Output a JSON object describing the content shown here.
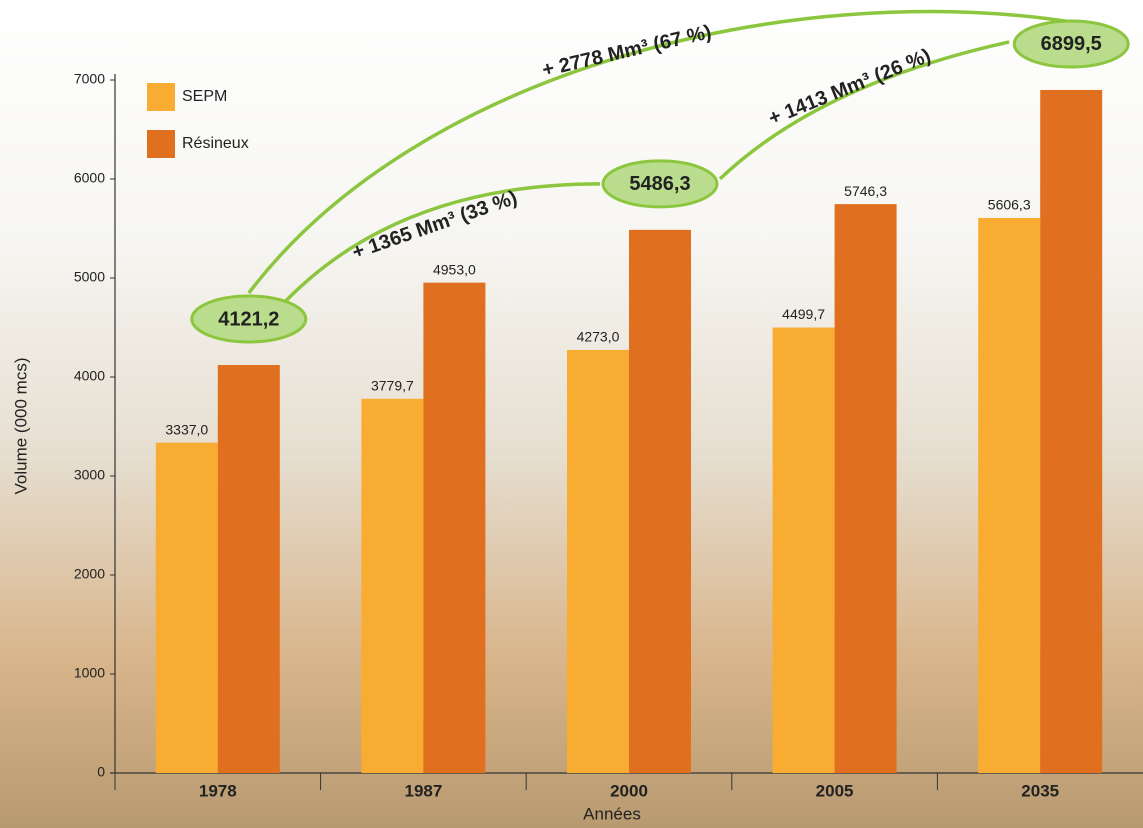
{
  "chart_data": {
    "type": "bar",
    "y_label": "Volume (000 mcs)",
    "x_label": "Années",
    "categories": [
      "1978",
      "1987",
      "2000",
      "2005",
      "2035"
    ],
    "series": [
      {
        "name": "SEPM",
        "color": "#f9ac32",
        "values": [
          3337.0,
          3779.7,
          4273.0,
          4499.7,
          5606.3
        ],
        "value_labels": [
          "3337,0",
          "3779,7",
          "4273,0",
          "4499,7",
          "5606,3"
        ]
      },
      {
        "name": "Résineux",
        "color": "#e0701f",
        "values": [
          4121.2,
          4953.0,
          5486.3,
          5746.3,
          6899.5
        ],
        "value_labels": [
          "4121,2",
          "4953,0",
          "5486,3",
          "5746,3",
          "6899,5"
        ]
      }
    ],
    "ylim": [
      0,
      7000
    ],
    "yticks": [
      0,
      1000,
      2000,
      3000,
      4000,
      5000,
      6000,
      7000
    ],
    "annotations": [
      "+ 1365 Mm³ (33 %)",
      "+ 1413 Mm³ (26 %)",
      "+ 2778 Mm³ (67 %)"
    ],
    "legend": "top-left"
  }
}
